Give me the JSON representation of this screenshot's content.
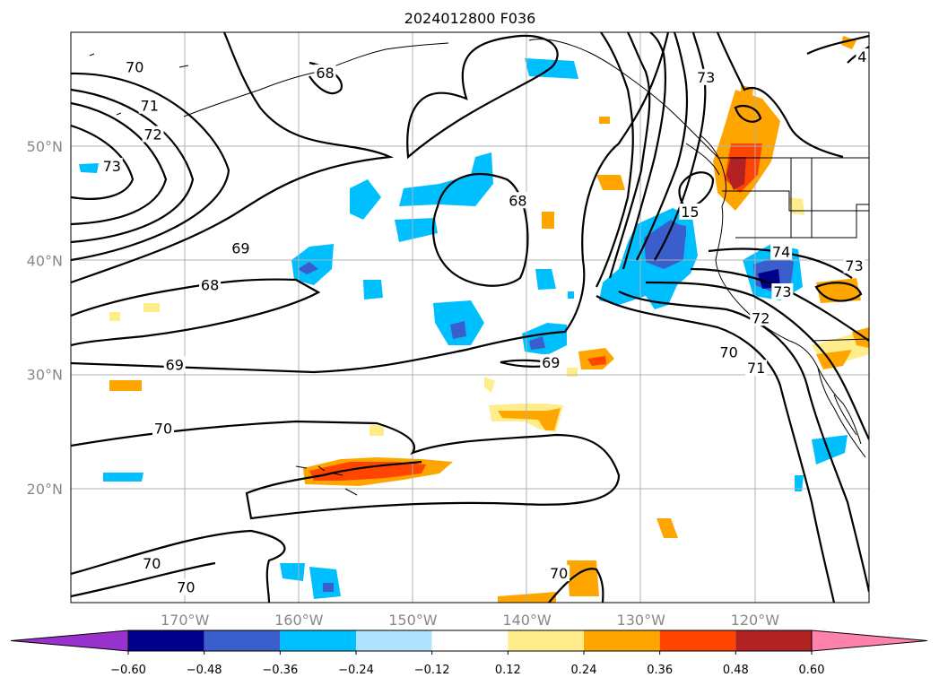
{
  "chart_data": {
    "type": "contour-map",
    "title": "2024012800 F036",
    "projection": "PlateCarree",
    "lon_range": [
      -180,
      -110
    ],
    "lat_range": [
      10,
      60
    ],
    "lon_ticks": [
      {
        "value": -170,
        "label": "170°W"
      },
      {
        "value": -160,
        "label": "160°W"
      },
      {
        "value": -150,
        "label": "150°W"
      },
      {
        "value": -140,
        "label": "140°W"
      },
      {
        "value": -130,
        "label": "130°W"
      },
      {
        "value": -120,
        "label": "120°W"
      }
    ],
    "lat_ticks": [
      {
        "value": 20,
        "label": "20°N"
      },
      {
        "value": 30,
        "label": "30°N"
      },
      {
        "value": 40,
        "label": "40°N"
      },
      {
        "value": 50,
        "label": "50°N"
      }
    ],
    "colorbar": {
      "extend": "both",
      "levels": [
        -0.6,
        -0.48,
        -0.36,
        -0.24,
        -0.12,
        0.12,
        0.24,
        0.36,
        0.48,
        0.6
      ],
      "tick_labels": [
        "−0.60",
        "−0.48",
        "−0.36",
        "−0.24",
        "−0.12",
        "0.12",
        "0.24",
        "0.36",
        "0.48",
        "0.60"
      ],
      "colors": [
        "#9932cc",
        "#00008b",
        "#3a5fcd",
        "#00bfff",
        "#b0e2ff",
        "#ffffff",
        "#ffec8b",
        "#ffa500",
        "#ff4500",
        "#b22222",
        "#ff82ab"
      ]
    },
    "contour_labels": [
      {
        "text": "70",
        "lon": -174.4,
        "lat": 56.9
      },
      {
        "text": "71",
        "lon": -173.1,
        "lat": 53.5
      },
      {
        "text": "72",
        "lon": -172.8,
        "lat": 51.0
      },
      {
        "text": "73",
        "lon": -176.4,
        "lat": 48.2
      },
      {
        "text": "68",
        "lon": -157.7,
        "lat": 56.4
      },
      {
        "text": "69",
        "lon": -165.1,
        "lat": 41.0
      },
      {
        "text": "68",
        "lon": -167.8,
        "lat": 37.8
      },
      {
        "text": "69",
        "lon": -170.9,
        "lat": 30.8
      },
      {
        "text": "70",
        "lon": -171.9,
        "lat": 25.2
      },
      {
        "text": "70",
        "lon": -172.9,
        "lat": 13.4
      },
      {
        "text": "70",
        "lon": -169.9,
        "lat": 11.3
      },
      {
        "text": "68",
        "lon": -140.8,
        "lat": 45.2
      },
      {
        "text": "69",
        "lon": -137.9,
        "lat": 31.0
      },
      {
        "text": "73",
        "lon": -124.3,
        "lat": 56.0
      },
      {
        "text": "15",
        "lon": -125.7,
        "lat": 44.2
      },
      {
        "text": "74",
        "lon": -117.7,
        "lat": 40.7
      },
      {
        "text": "73",
        "lon": -117.6,
        "lat": 37.2
      },
      {
        "text": "72",
        "lon": -119.5,
        "lat": 34.9
      },
      {
        "text": "70",
        "lon": -122.3,
        "lat": 31.9
      },
      {
        "text": "71",
        "lon": -119.9,
        "lat": 30.5
      },
      {
        "text": "73",
        "lon": -111.3,
        "lat": 39.5
      },
      {
        "text": "70",
        "lon": -137.2,
        "lat": 12.5
      },
      {
        "text": "4",
        "lon": -110.6,
        "lat": 57.8
      }
    ]
  }
}
